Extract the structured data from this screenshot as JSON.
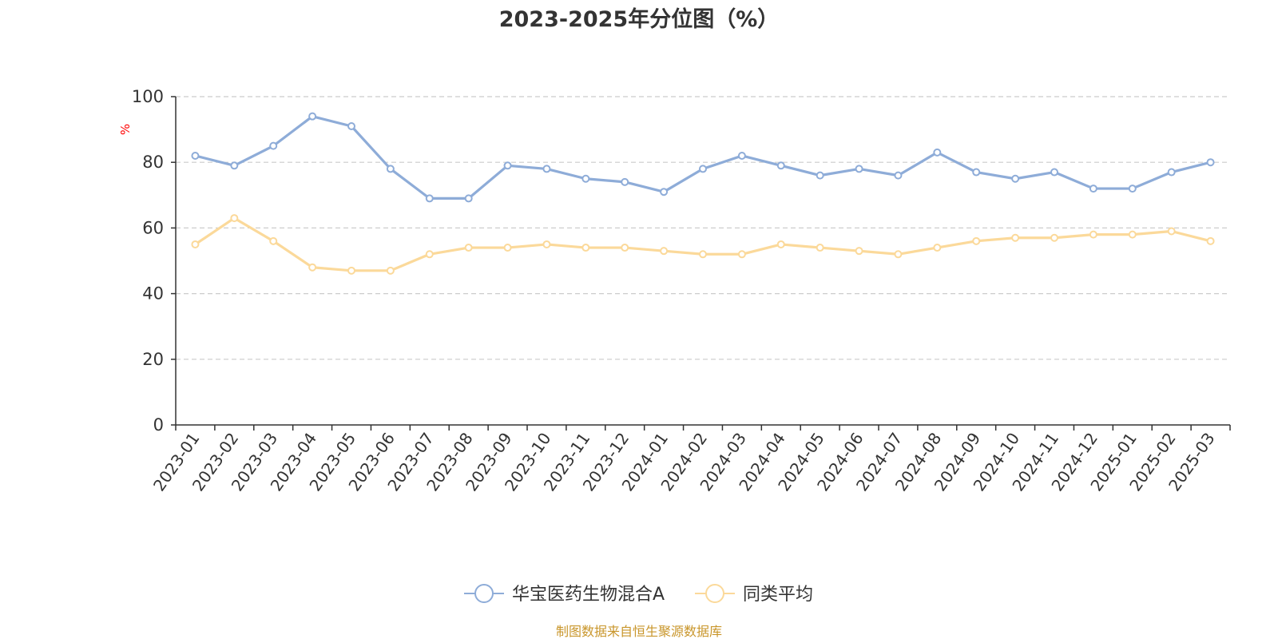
{
  "title": "2023-2025年分位图（%）",
  "source_note": "制图数据来自恒生聚源数据库",
  "colors": {
    "series1": "#8eacd8",
    "series2": "#fbd99a",
    "axis": "#333333",
    "grid": "#cccccc",
    "ylabel": "#ff0000",
    "source": "#c9962b"
  },
  "chart_data": {
    "type": "line",
    "title": "2023-2025年分位图（%）",
    "ylabel": "%",
    "ylim": [
      0,
      100
    ],
    "yticks": [
      0,
      20,
      40,
      60,
      80,
      100
    ],
    "grid": true,
    "legend_position": "bottom",
    "x": [
      "2023-01",
      "2023-02",
      "2023-03",
      "2023-04",
      "2023-05",
      "2023-06",
      "2023-07",
      "2023-08",
      "2023-09",
      "2023-10",
      "2023-11",
      "2023-12",
      "2024-01",
      "2024-02",
      "2024-03",
      "2024-04",
      "2024-05",
      "2024-06",
      "2024-07",
      "2024-08",
      "2024-09",
      "2024-10",
      "2024-11",
      "2024-12",
      "2025-01",
      "2025-02",
      "2025-03"
    ],
    "series": [
      {
        "name": "华宝医药生物混合A",
        "values": [
          82,
          79,
          85,
          94,
          91,
          78,
          69,
          69,
          79,
          78,
          75,
          74,
          71,
          78,
          82,
          79,
          76,
          78,
          76,
          83,
          77,
          75,
          77,
          72,
          72,
          77,
          80
        ]
      },
      {
        "name": "同类平均",
        "values": [
          55,
          63,
          56,
          48,
          47,
          47,
          52,
          54,
          54,
          55,
          54,
          54,
          53,
          52,
          52,
          55,
          54,
          53,
          52,
          54,
          56,
          57,
          57,
          58,
          58,
          59,
          56
        ]
      }
    ]
  }
}
